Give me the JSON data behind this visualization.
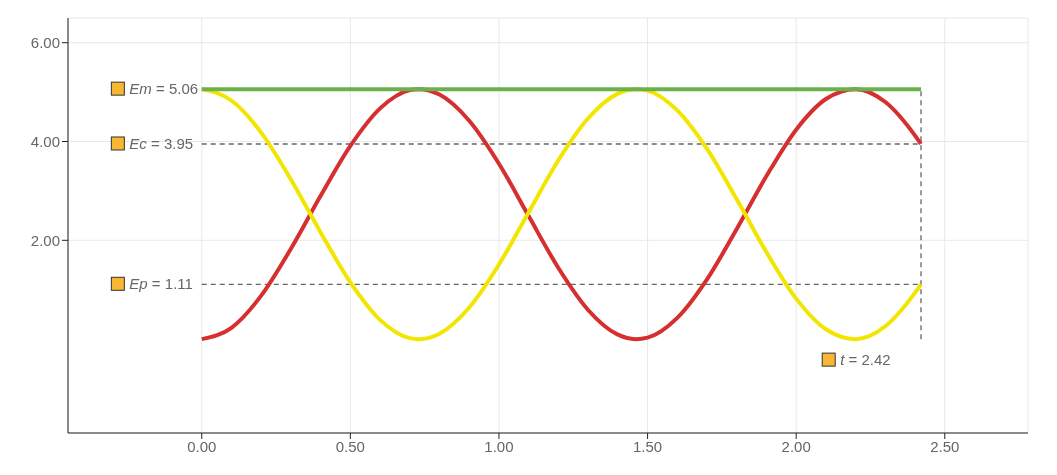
{
  "chart_data": {
    "type": "line",
    "xlim": [
      -0.45,
      2.78
    ],
    "ylim": [
      -1.9,
      6.5
    ],
    "xticks": [
      {
        "value": 0,
        "label": "0.00"
      },
      {
        "value": 0.5,
        "label": "0.50"
      },
      {
        "value": 1,
        "label": "1.00"
      },
      {
        "value": 1.5,
        "label": "1.50"
      },
      {
        "value": 2,
        "label": "2.00"
      },
      {
        "value": 2.5,
        "label": "2.50"
      }
    ],
    "yticks": [
      {
        "value": 2,
        "label": "2.00"
      },
      {
        "value": 4,
        "label": "4.00"
      },
      {
        "value": 6,
        "label": "6.00"
      }
    ],
    "grid": true,
    "marker": "none",
    "line_style": "solid",
    "series": [
      {
        "color": "#d62f2f",
        "x": [
          0,
          0.1,
          0.2,
          0.3,
          0.4,
          0.5,
          0.6,
          0.7,
          0.73,
          0.8,
          0.9,
          1.0,
          1.1,
          1.2,
          1.3,
          1.4,
          1.46,
          1.5,
          1.6,
          1.7,
          1.8,
          1.9,
          2.0,
          2.1,
          2.2,
          2.3,
          2.4,
          2.42
        ],
        "values": [
          0,
          0.23,
          0.88,
          1.83,
          2.9,
          3.91,
          4.67,
          5.04,
          5.06,
          4.95,
          4.42,
          3.55,
          2.49,
          1.44,
          0.59,
          0.09,
          0,
          0.03,
          0.43,
          1.21,
          2.23,
          3.3,
          4.24,
          4.86,
          5.06,
          4.8,
          4.12,
          3.95
        ]
      },
      {
        "color": "#f2e600",
        "x": [
          0,
          0.1,
          0.2,
          0.3,
          0.4,
          0.5,
          0.6,
          0.7,
          0.73,
          0.8,
          0.9,
          1.0,
          1.1,
          1.2,
          1.3,
          1.4,
          1.46,
          1.5,
          1.6,
          1.7,
          1.8,
          1.9,
          2.0,
          2.1,
          2.2,
          2.3,
          2.4,
          2.42
        ],
        "values": [
          5.06,
          4.83,
          4.18,
          3.23,
          2.16,
          1.15,
          0.39,
          0.02,
          0,
          0.11,
          0.64,
          1.51,
          2.57,
          3.62,
          4.47,
          4.97,
          5.06,
          5.03,
          4.63,
          3.85,
          2.83,
          1.76,
          0.82,
          0.2,
          0,
          0.26,
          0.94,
          1.11
        ]
      },
      {
        "color": "#6ab04c",
        "x": [
          0,
          2.42
        ],
        "values": [
          5.06,
          5.06
        ]
      }
    ],
    "ref_lines": [
      {
        "axis": "y",
        "value": 3.95,
        "label": "Ec = 3.95",
        "color": "#666666",
        "line_style": "dashed"
      },
      {
        "axis": "y",
        "value": 1.11,
        "label": "Ep = 1.11",
        "color": "#666666",
        "line_style": "dashed"
      },
      {
        "axis": "x",
        "value": 2.42,
        "label": "t = 2.42",
        "color": "#666666",
        "line_style": "dashed"
      }
    ],
    "annotations": [
      {
        "text": "Em = 5.06",
        "x": 0,
        "y": 5.06
      }
    ]
  }
}
